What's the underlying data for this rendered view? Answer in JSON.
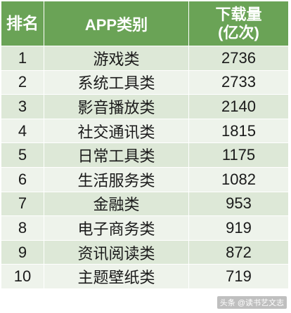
{
  "header": {
    "rank": "排名",
    "category": "APP类别",
    "downloads_line1": "下载量",
    "downloads_line2": "(亿次)"
  },
  "rows": [
    {
      "rank": "1",
      "category": "游戏类",
      "downloads": "2736"
    },
    {
      "rank": "2",
      "category": "系统工具类",
      "downloads": "2733"
    },
    {
      "rank": "3",
      "category": "影音播放类",
      "downloads": "2140"
    },
    {
      "rank": "4",
      "category": "社交通讯类",
      "downloads": "1815"
    },
    {
      "rank": "5",
      "category": "日常工具类",
      "downloads": "1175"
    },
    {
      "rank": "6",
      "category": "生活服务类",
      "downloads": "1082"
    },
    {
      "rank": "7",
      "category": "金融类",
      "downloads": "953"
    },
    {
      "rank": "8",
      "category": "电子商务类",
      "downloads": "919"
    },
    {
      "rank": "9",
      "category": "资讯阅读类",
      "downloads": "872"
    },
    {
      "rank": "10",
      "category": "主题壁纸类",
      "downloads": "719"
    }
  ],
  "watermark": "头条 @读书艺文志",
  "colors": {
    "header_bg": "#6aa356",
    "row_odd": "#dde8d7",
    "row_even": "#eef3eb"
  }
}
